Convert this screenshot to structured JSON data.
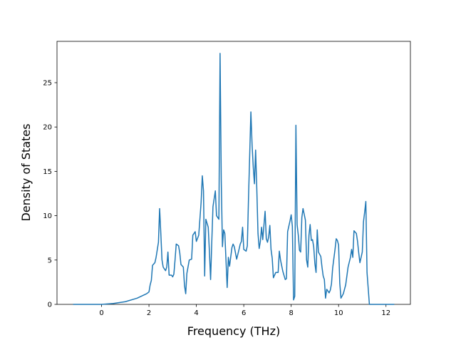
{
  "chart_data": {
    "type": "line",
    "x_label": "Frequency (THz)",
    "y_label": "Density of States",
    "x": [
      -1.2,
      0,
      0.5,
      1,
      1.5,
      1.9,
      2.0,
      2.05,
      2.1,
      2.15,
      2.25,
      2.3,
      2.4,
      2.45,
      2.5,
      2.55,
      2.6,
      2.7,
      2.75,
      2.8,
      2.85,
      2.95,
      3.0,
      3.05,
      3.1,
      3.15,
      3.25,
      3.3,
      3.35,
      3.45,
      3.5,
      3.55,
      3.6,
      3.7,
      3.8,
      3.85,
      3.95,
      4.0,
      4.1,
      4.2,
      4.25,
      4.3,
      4.35,
      4.4,
      4.5,
      4.55,
      4.6,
      4.65,
      4.7,
      4.8,
      4.85,
      4.95,
      5.0,
      5.05,
      5.1,
      5.15,
      5.2,
      5.3,
      5.35,
      5.4,
      5.5,
      5.55,
      5.6,
      5.7,
      5.8,
      5.85,
      5.9,
      5.95,
      6.0,
      6.1,
      6.15,
      6.2,
      6.3,
      6.35,
      6.4,
      6.45,
      6.5,
      6.55,
      6.6,
      6.65,
      6.7,
      6.75,
      6.8,
      6.9,
      6.95,
      7.0,
      7.05,
      7.1,
      7.15,
      7.2,
      7.25,
      7.35,
      7.45,
      7.5,
      7.55,
      7.65,
      7.75,
      7.8,
      7.85,
      7.95,
      8.0,
      8.05,
      8.1,
      8.15,
      8.2,
      8.25,
      8.3,
      8.35,
      8.4,
      8.45,
      8.5,
      8.6,
      8.65,
      8.7,
      8.75,
      8.8,
      8.85,
      8.9,
      8.95,
      9.0,
      9.05,
      9.1,
      9.15,
      9.25,
      9.3,
      9.35,
      9.4,
      9.45,
      9.5,
      9.55,
      9.6,
      9.65,
      9.7,
      9.75,
      9.85,
      9.9,
      9.95,
      10.0,
      10.05,
      10.1,
      10.2,
      10.3,
      10.4,
      10.5,
      10.55,
      10.6,
      10.65,
      10.75,
      10.8,
      10.85,
      10.9,
      11.0,
      11.05,
      11.1,
      11.15,
      11.2,
      11.3,
      11.5,
      12.35
    ],
    "values": [
      0,
      0,
      0.1,
      0.3,
      0.7,
      1.2,
      1.4,
      2.2,
      2.7,
      4.4,
      4.7,
      5.3,
      7,
      10.8,
      8,
      5,
      4.2,
      3.8,
      4.2,
      5.9,
      3.3,
      3.3,
      3.1,
      3.4,
      5,
      6.8,
      6.6,
      5.8,
      4.5,
      4.2,
      2.1,
      1.2,
      3.5,
      5.0,
      5.1,
      7.8,
      8.2,
      7.1,
      7.8,
      11.5,
      14.5,
      12.8,
      3.2,
      9.6,
      8.7,
      6.0,
      2.8,
      7,
      11,
      12.8,
      10,
      9.6,
      28.3,
      14,
      6.5,
      8.4,
      8,
      1.9,
      5.3,
      4.3,
      6.4,
      6.8,
      6.5,
      5.1,
      6.2,
      6.8,
      7.1,
      8.7,
      6.2,
      6,
      6.6,
      12,
      21.7,
      18,
      15.5,
      13.6,
      17.4,
      13,
      8,
      6.3,
      7.1,
      8.7,
      7.3,
      10.5,
      7.4,
      7,
      7.6,
      8.9,
      6.2,
      5.2,
      3.0,
      3.6,
      3.6,
      6.0,
      5,
      3.7,
      2.8,
      2.9,
      8.2,
      9.4,
      10.1,
      8.8,
      0.5,
      0.9,
      20.2,
      9,
      7.8,
      6.1,
      5.9,
      9.8,
      10.8,
      9.5,
      5,
      4.2,
      7.8,
      9,
      7.2,
      7.3,
      6.5,
      4.6,
      3.6,
      8.4,
      5.9,
      5.4,
      4.2,
      3.2,
      2.8,
      0.7,
      1.7,
      1.5,
      1.3,
      1.6,
      2.3,
      4.1,
      6.2,
      7.4,
      7.2,
      6.7,
      2.4,
      0.7,
      1.2,
      2.2,
      4.2,
      5.3,
      6.2,
      5.3,
      8.3,
      8,
      7.1,
      5.8,
      4.7,
      5.9,
      9.3,
      10.4,
      11.6,
      3.6,
      0,
      0,
      0
    ],
    "color": "#1f77b4",
    "xlim": [
      -1.88,
      13.03
    ],
    "xticks": [
      0,
      2,
      4,
      6,
      8,
      10,
      12
    ],
    "ylim": [
      0,
      29.66
    ],
    "yticks": [
      0,
      5,
      10,
      15,
      20,
      25
    ]
  }
}
